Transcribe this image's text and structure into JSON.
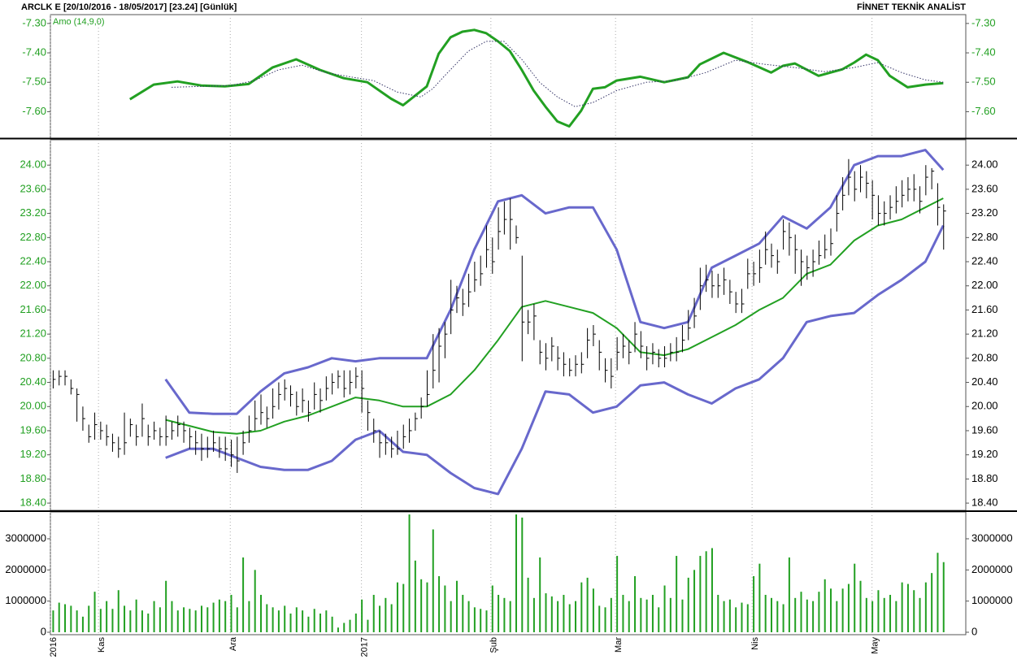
{
  "header": {
    "symbol_info": "ARCLK E  [20/10/2016 - 18/05/2017]  [23.24]  [Günlük]",
    "brand": "FİNNET TEKNİK ANALİST"
  },
  "chart_data": [
    {
      "type": "line",
      "legend": "Amo (14,9,0)",
      "xlim": [
        -0.4,
        153.8
      ],
      "ylim": [
        -7.69,
        -7.27
      ],
      "yticks": [
        {
          "value": -7.3,
          "label": "-7.30"
        },
        {
          "value": -7.4,
          "label": "-7.40"
        },
        {
          "value": -7.5,
          "label": "-7.50"
        },
        {
          "value": -7.6,
          "label": "-7.60"
        }
      ],
      "axis_color": "#22a022",
      "series": [
        {
          "name": "Amo (14,9,0)",
          "color": "#22a022",
          "width": 3,
          "x": [
            13,
            17,
            21,
            25,
            29,
            33,
            37,
            41,
            45,
            49,
            53,
            57,
            59,
            63,
            65,
            67,
            69,
            71,
            73,
            75,
            77,
            79,
            81,
            83,
            85,
            87,
            89,
            91,
            93,
            95,
            99,
            103,
            107,
            109,
            113,
            117,
            121,
            123,
            125,
            129,
            133,
            135,
            137,
            139,
            141,
            144,
            147,
            150
          ],
          "values": [
            -7.558,
            -7.508,
            -7.497,
            -7.511,
            -7.514,
            -7.506,
            -7.45,
            -7.422,
            -7.458,
            -7.486,
            -7.5,
            -7.556,
            -7.578,
            -7.514,
            -7.403,
            -7.347,
            -7.328,
            -7.322,
            -7.333,
            -7.361,
            -7.394,
            -7.458,
            -7.528,
            -7.583,
            -7.633,
            -7.65,
            -7.597,
            -7.522,
            -7.517,
            -7.494,
            -7.481,
            -7.5,
            -7.483,
            -7.439,
            -7.4,
            -7.431,
            -7.467,
            -7.444,
            -7.436,
            -7.478,
            -7.456,
            -7.433,
            -7.406,
            -7.425,
            -7.478,
            -7.517,
            -7.508,
            -7.503
          ]
        },
        {
          "color": "#333366",
          "width": 1,
          "dotted": true,
          "x": [
            20,
            25,
            30,
            34,
            38,
            42,
            46,
            50,
            54,
            58,
            62,
            64,
            66,
            70,
            73,
            76,
            79,
            82,
            85,
            88,
            91,
            95,
            100,
            105,
            110,
            115,
            120,
            125,
            130,
            135,
            139,
            143,
            147,
            150
          ],
          "values": [
            -7.517,
            -7.514,
            -7.511,
            -7.494,
            -7.458,
            -7.442,
            -7.467,
            -7.481,
            -7.494,
            -7.533,
            -7.55,
            -7.522,
            -7.478,
            -7.394,
            -7.361,
            -7.361,
            -7.422,
            -7.5,
            -7.55,
            -7.583,
            -7.569,
            -7.528,
            -7.5,
            -7.494,
            -7.467,
            -7.425,
            -7.439,
            -7.45,
            -7.464,
            -7.45,
            -7.433,
            -7.467,
            -7.492,
            -7.5
          ]
        }
      ]
    },
    {
      "type": "ohlc",
      "xlim": [
        -0.4,
        153.8
      ],
      "ylim": [
        18.28,
        24.42
      ],
      "color": "#000000",
      "axis_color": "#22a022",
      "yticks": [
        {
          "value": 18.4,
          "label": "18.40"
        },
        {
          "value": 18.8,
          "label": "18.80"
        },
        {
          "value": 19.2,
          "label": "19.20"
        },
        {
          "value": 19.6,
          "label": "19.60"
        },
        {
          "value": 20,
          "label": "20.00"
        },
        {
          "value": 20.4,
          "label": "20.40"
        },
        {
          "value": 20.8,
          "label": "20.80"
        },
        {
          "value": 21.2,
          "label": "21.20"
        },
        {
          "value": 21.6,
          "label": "21.60"
        },
        {
          "value": 22,
          "label": "22.00"
        },
        {
          "value": 22.4,
          "label": "22.40"
        },
        {
          "value": 22.8,
          "label": "22.80"
        },
        {
          "value": 23.2,
          "label": "23.20"
        },
        {
          "value": 23.6,
          "label": "23.60"
        },
        {
          "value": 24,
          "label": "24.00"
        }
      ],
      "high": [
        20.6,
        20.6,
        20.6,
        20.45,
        20.3,
        20.0,
        19.7,
        19.9,
        19.75,
        19.7,
        19.55,
        19.5,
        19.9,
        19.8,
        19.7,
        20.05,
        19.7,
        19.75,
        19.65,
        19.85,
        19.75,
        19.85,
        19.75,
        19.65,
        19.6,
        19.55,
        19.5,
        19.6,
        19.5,
        19.5,
        19.45,
        19.5,
        19.6,
        19.85,
        20.1,
        20.2,
        20.0,
        20.3,
        20.4,
        20.45,
        20.35,
        20.25,
        20.3,
        20.1,
        20.4,
        20.3,
        20.5,
        20.55,
        20.6,
        20.6,
        20.6,
        20.65,
        20.6,
        20.1,
        19.8,
        19.6,
        19.55,
        19.5,
        19.6,
        19.7,
        19.8,
        19.9,
        20.15,
        20.6,
        21.2,
        21.3,
        21.4,
        22.1,
        22.0,
        21.95,
        22.2,
        22.4,
        22.5,
        23.0,
        22.8,
        23.3,
        23.4,
        23.45,
        23.0,
        22.5,
        21.6,
        21.7,
        21.1,
        21.05,
        21.15,
        21.0,
        20.9,
        20.8,
        20.85,
        20.9,
        21.3,
        21.35,
        21.1,
        20.8,
        20.8,
        21.15,
        21.2,
        21.1,
        21.4,
        21.25,
        21.0,
        21.05,
        20.95,
        21.0,
        21.05,
        21.15,
        21.35,
        21.6,
        21.8,
        22.3,
        22.35,
        22.25,
        22.2,
        22.3,
        22.1,
        21.9,
        21.95,
        22.45,
        22.4,
        22.6,
        22.9,
        22.7,
        22.6,
        23.1,
        23.05,
        22.85,
        22.6,
        22.5,
        22.6,
        22.75,
        22.85,
        22.95,
        23.5,
        23.8,
        24.1,
        23.9,
        24.0,
        23.9,
        23.75,
        23.5,
        23.4,
        23.5,
        23.65,
        23.75,
        23.8,
        23.85,
        23.65,
        24.0,
        23.95,
        23.7,
        23.35
      ],
      "low": [
        20.3,
        20.35,
        20.35,
        20.2,
        19.75,
        19.6,
        19.4,
        19.45,
        19.45,
        19.35,
        19.25,
        19.15,
        19.2,
        19.5,
        19.35,
        19.5,
        19.35,
        19.45,
        19.35,
        19.35,
        19.45,
        19.5,
        19.4,
        19.3,
        19.2,
        19.1,
        19.15,
        19.25,
        19.15,
        19.1,
        19.0,
        18.9,
        19.2,
        19.4,
        19.6,
        19.7,
        19.65,
        19.8,
        19.95,
        20.1,
        20.0,
        19.85,
        19.9,
        19.75,
        19.95,
        19.9,
        20.1,
        20.2,
        20.3,
        20.15,
        20.2,
        20.3,
        19.9,
        19.6,
        19.4,
        19.15,
        19.2,
        19.15,
        19.2,
        19.3,
        19.4,
        19.6,
        19.8,
        20.0,
        20.3,
        20.4,
        20.8,
        21.2,
        21.55,
        21.5,
        21.65,
        21.9,
        22.0,
        22.3,
        22.2,
        22.6,
        22.85,
        22.6,
        22.7,
        20.75,
        21.2,
        21.1,
        20.7,
        20.6,
        20.75,
        20.6,
        20.5,
        20.5,
        20.5,
        20.55,
        20.8,
        21.0,
        20.6,
        20.4,
        20.3,
        20.6,
        20.8,
        20.7,
        20.9,
        20.8,
        20.6,
        20.7,
        20.65,
        20.65,
        20.75,
        20.75,
        20.9,
        21.1,
        21.3,
        21.6,
        21.9,
        21.8,
        21.8,
        21.85,
        21.7,
        21.55,
        21.55,
        21.95,
        22.0,
        22.05,
        22.35,
        22.3,
        22.2,
        22.6,
        22.5,
        22.2,
        22.0,
        22.1,
        22.15,
        22.35,
        22.45,
        22.5,
        22.9,
        23.25,
        23.5,
        23.4,
        23.55,
        23.45,
        23.1,
        23.0,
        23.0,
        23.1,
        23.2,
        23.3,
        23.4,
        23.4,
        23.2,
        23.5,
        23.6,
        23.0,
        22.6
      ],
      "close": [
        20.45,
        20.5,
        20.5,
        20.3,
        20.2,
        19.8,
        19.5,
        19.7,
        19.6,
        19.5,
        19.4,
        19.3,
        19.4,
        19.7,
        19.5,
        19.8,
        19.5,
        19.6,
        19.5,
        19.5,
        19.6,
        19.7,
        19.6,
        19.5,
        19.4,
        19.3,
        19.3,
        19.4,
        19.3,
        19.3,
        19.2,
        19.1,
        19.4,
        19.6,
        19.8,
        19.9,
        19.8,
        20.0,
        20.2,
        20.3,
        20.2,
        20.0,
        20.1,
        19.9,
        20.2,
        20.1,
        20.3,
        20.4,
        20.5,
        20.3,
        20.4,
        20.5,
        20.3,
        19.9,
        19.6,
        19.4,
        19.4,
        19.3,
        19.3,
        19.5,
        19.6,
        19.8,
        20.0,
        20.2,
        20.6,
        21.0,
        21.2,
        21.6,
        21.8,
        21.7,
        21.9,
        22.1,
        22.2,
        22.6,
        22.4,
        22.9,
        23.1,
        23.1,
        22.8,
        21.4,
        21.4,
        21.5,
        20.9,
        20.8,
        21.0,
        20.8,
        20.7,
        20.6,
        20.7,
        20.7,
        21.1,
        21.2,
        20.9,
        20.6,
        20.5,
        20.9,
        21.0,
        20.9,
        21.2,
        21.0,
        20.8,
        20.9,
        20.8,
        20.8,
        20.9,
        20.9,
        21.1,
        21.3,
        21.5,
        22.0,
        22.1,
        22.0,
        22.0,
        22.1,
        21.9,
        21.7,
        21.7,
        22.2,
        22.2,
        22.3,
        22.6,
        22.5,
        22.4,
        22.9,
        22.8,
        22.6,
        22.4,
        22.3,
        22.4,
        22.5,
        22.6,
        22.7,
        23.2,
        23.5,
        23.8,
        23.6,
        23.8,
        23.7,
        23.5,
        23.2,
        23.2,
        23.3,
        23.4,
        23.5,
        23.6,
        23.6,
        23.4,
        23.8,
        23.9,
        23.3,
        23.24
      ],
      "bands": {
        "band_color": "#6868cc",
        "middle_color": "#22a022",
        "x": [
          19,
          23,
          27,
          31,
          35,
          39,
          43,
          47,
          51,
          55,
          59,
          63,
          67,
          71,
          75,
          79,
          83,
          87,
          91,
          95,
          99,
          103,
          107,
          111,
          115,
          119,
          123,
          127,
          131,
          135,
          139,
          143,
          147,
          150
        ],
        "upper": [
          20.45,
          19.9,
          19.88,
          19.88,
          20.25,
          20.55,
          20.65,
          20.8,
          20.75,
          20.8,
          20.8,
          20.8,
          21.6,
          22.6,
          23.4,
          23.5,
          23.2,
          23.3,
          23.3,
          22.6,
          21.4,
          21.3,
          21.4,
          22.3,
          22.5,
          22.7,
          23.15,
          22.95,
          23.3,
          24.0,
          24.15,
          24.15,
          24.25,
          23.92
        ],
        "middle": [
          19.78,
          19.68,
          19.58,
          19.55,
          19.6,
          19.75,
          19.85,
          20.0,
          20.15,
          20.1,
          20.0,
          20.0,
          20.2,
          20.6,
          21.1,
          21.65,
          21.75,
          21.65,
          21.55,
          21.3,
          20.9,
          20.85,
          20.95,
          21.15,
          21.35,
          21.6,
          21.8,
          22.2,
          22.35,
          22.75,
          23.0,
          23.1,
          23.3,
          23.45
        ],
        "lower": [
          19.15,
          19.3,
          19.3,
          19.15,
          19.0,
          18.95,
          18.95,
          19.1,
          19.45,
          19.6,
          19.25,
          19.2,
          18.9,
          18.65,
          18.55,
          19.3,
          20.25,
          20.2,
          19.9,
          20.0,
          20.35,
          20.4,
          20.2,
          20.05,
          20.3,
          20.45,
          20.8,
          21.4,
          21.5,
          21.55,
          21.85,
          22.1,
          22.4,
          23.0
        ]
      }
    },
    {
      "type": "bar",
      "xlim": [
        -0.4,
        153.8
      ],
      "ylim": [
        0,
        3860000
      ],
      "color": "#22a022",
      "axis_color": "#000000",
      "yticks": [
        0,
        1000000,
        2000000,
        3000000
      ],
      "xticks": [
        {
          "value": -0.4,
          "label": "2016"
        },
        {
          "value": 7.7,
          "label": "Kas"
        },
        {
          "value": 29.9,
          "label": "Ara"
        },
        {
          "value": 52,
          "label": "2017"
        },
        {
          "value": 73.8,
          "label": "Şub"
        },
        {
          "value": 94.8,
          "label": "Mar"
        },
        {
          "value": 117.8,
          "label": "Nis"
        },
        {
          "value": 138,
          "label": "May"
        }
      ],
      "values": [
        700000,
        950000,
        900000,
        850000,
        700000,
        500000,
        850000,
        1300000,
        750000,
        1000000,
        750000,
        1350000,
        850000,
        700000,
        1050000,
        700000,
        600000,
        1000000,
        800000,
        1650000,
        1000000,
        700000,
        800000,
        750000,
        700000,
        850000,
        800000,
        950000,
        1050000,
        1000000,
        1200000,
        800000,
        2400000,
        1000000,
        2000000,
        1200000,
        900000,
        800000,
        700000,
        850000,
        600000,
        800000,
        700000,
        500000,
        750000,
        600000,
        700000,
        500000,
        150000,
        300000,
        400000,
        600000,
        1050000,
        400000,
        1200000,
        850000,
        1100000,
        900000,
        1600000,
        1550000,
        3780000,
        2300000,
        1700000,
        1600000,
        3300000,
        1800000,
        1500000,
        1000000,
        1650000,
        1200000,
        1000000,
        800000,
        750000,
        700000,
        1500000,
        1200000,
        1100000,
        1000000,
        3780000,
        3680000,
        1750000,
        1100000,
        2400000,
        1250000,
        1150000,
        1000000,
        1200000,
        900000,
        1000000,
        1600000,
        1750000,
        1400000,
        850000,
        800000,
        1100000,
        2450000,
        1200000,
        1000000,
        1800000,
        1100000,
        1050000,
        1200000,
        800000,
        1500000,
        1100000,
        2450000,
        1050000,
        1750000,
        2000000,
        2450000,
        2600000,
        2700000,
        1200000,
        1000000,
        1050000,
        800000,
        950000,
        900000,
        1800000,
        2200000,
        1200000,
        1100000,
        1000000,
        900000,
        2400000,
        1100000,
        1300000,
        1050000,
        1000000,
        1300000,
        1700000,
        1400000,
        1000000,
        1400000,
        1550000,
        2200000,
        1650000,
        1100000,
        1000000,
        1350000,
        1100000,
        1200000,
        1000000,
        1600000,
        1550000,
        1350000,
        1100000,
        1600000,
        1900000,
        2550000,
        2250000
      ]
    }
  ]
}
